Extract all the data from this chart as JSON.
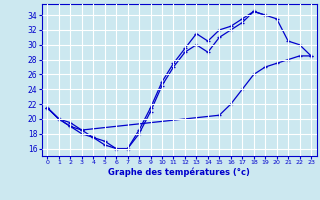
{
  "background_color": "#cce8f0",
  "grid_color": "#ffffff",
  "line_color": "#0000cc",
  "xlabel": "Graphe des températures (°c)",
  "xlim": [
    -0.5,
    23.5
  ],
  "ylim": [
    15.0,
    35.5
  ],
  "yticks": [
    16,
    18,
    20,
    22,
    24,
    26,
    28,
    30,
    32,
    34
  ],
  "xticks": [
    0,
    1,
    2,
    3,
    4,
    5,
    6,
    7,
    8,
    9,
    10,
    11,
    12,
    13,
    14,
    15,
    16,
    17,
    18,
    19,
    20,
    21,
    22,
    23
  ],
  "series": [
    {
      "x": [
        0,
        1,
        2,
        3,
        4,
        5,
        6,
        7,
        8,
        9,
        10,
        11,
        12,
        13,
        14,
        15,
        16,
        17,
        18,
        19,
        20,
        21,
        22,
        23
      ],
      "y": [
        21.5,
        20.0,
        19.0,
        18.5,
        17.5,
        17.0,
        16.0,
        16.0,
        18.5,
        21.5,
        25.0,
        27.5,
        29.5,
        31.5,
        30.5,
        32.0,
        32.5,
        33.5,
        34.5,
        34.0,
        33.5,
        30.5,
        30.0,
        28.5
      ]
    },
    {
      "x": [
        0,
        1,
        2,
        3,
        4,
        5,
        6,
        7,
        8,
        9,
        10,
        11,
        12,
        13,
        14,
        15,
        16,
        17,
        18,
        19
      ],
      "y": [
        21.5,
        20.0,
        19.0,
        18.0,
        17.5,
        16.5,
        16.0,
        16.0,
        18.0,
        21.0,
        24.5,
        27.0,
        29.0,
        30.0,
        29.0,
        31.0,
        32.0,
        33.0,
        34.5,
        34.0
      ]
    },
    {
      "x": [
        0,
        1,
        2,
        3,
        15,
        16,
        17,
        18,
        19,
        20,
        21,
        22,
        23
      ],
      "y": [
        21.5,
        20.0,
        19.5,
        18.5,
        20.5,
        22.0,
        24.0,
        26.0,
        27.0,
        27.5,
        28.0,
        28.5,
        28.5
      ]
    }
  ]
}
